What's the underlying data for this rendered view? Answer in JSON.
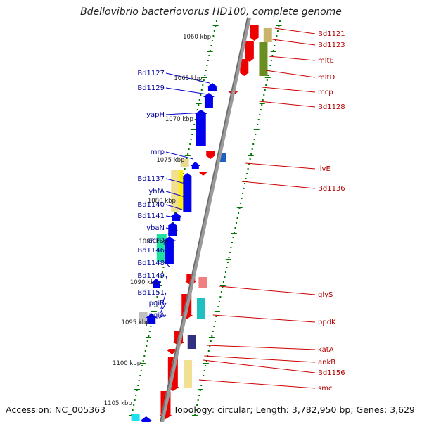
{
  "title": "Bdellovibrio bacteriovorus HD100, complete genome",
  "footer": {
    "accession": "Accession: NC_005363",
    "topology": "Topology: circular; Length: 3,782,950 bp; Genes: 3,629"
  },
  "colors": {
    "forward_label": "#00009c",
    "reverse_label": "#b00000",
    "forward_gene": "#0000ee",
    "reverse_gene": "#ee0000",
    "tick": "#007700",
    "backbone": "#808080"
  },
  "kbp_labels": [
    "1060 kbp",
    "1065 kbp",
    "1070 kbp",
    "1075 kbp",
    "1080 kbp",
    "1085 kbp",
    "1090 kbp",
    "1095 kbp",
    "1100 kbp",
    "1105 kbp"
  ],
  "left_genes": [
    "Bd1127",
    "Bd1129",
    "yapH",
    "mrp",
    "Bd1137",
    "yhfA",
    "Bd1140",
    "Bd1141",
    "ybaN",
    "acrD",
    "Bd1146",
    "Bd1148",
    "Bd1149",
    "Bd1151",
    "pqiB",
    "pqiA"
  ],
  "right_genes": [
    "Bd1121",
    "Bd1123",
    "mltE",
    "mltD",
    "mcp",
    "Bd1128",
    "ilvE",
    "Bd1136",
    "glyS",
    "ppdK",
    "katA",
    "ankB",
    "Bd1156",
    "smc"
  ]
}
